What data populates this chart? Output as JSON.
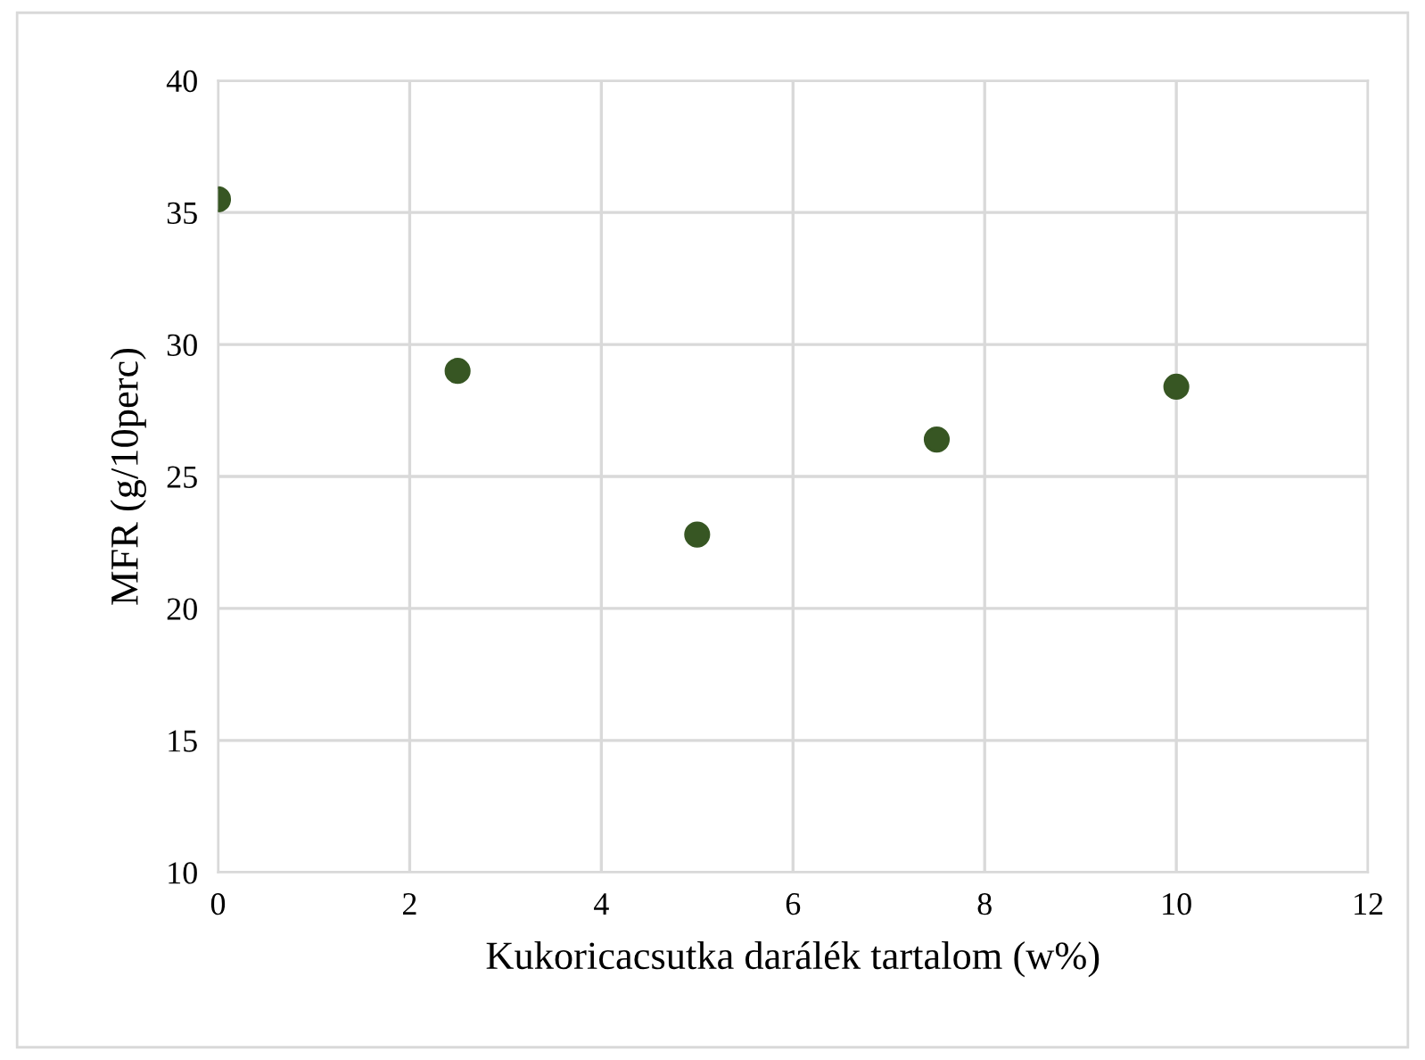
{
  "chart_data": {
    "type": "scatter",
    "xlabel": "Kukoricacsutka darálék tartalom (w%)",
    "ylabel": "MFR (g/10perc)",
    "x": [
      0,
      2.5,
      5,
      7.5,
      10
    ],
    "series": [
      {
        "color": "#375623",
        "values": [
          35.5,
          29.0,
          22.8,
          26.4,
          28.4
        ]
      }
    ],
    "xlim": [
      0,
      12
    ],
    "xticks": [
      0,
      2,
      4,
      6,
      8,
      10,
      12
    ],
    "ylim": [
      10,
      40
    ],
    "yticks": [
      10,
      15,
      20,
      25,
      30,
      35,
      40
    ],
    "grid": true,
    "marker": "circle",
    "legend": false
  }
}
